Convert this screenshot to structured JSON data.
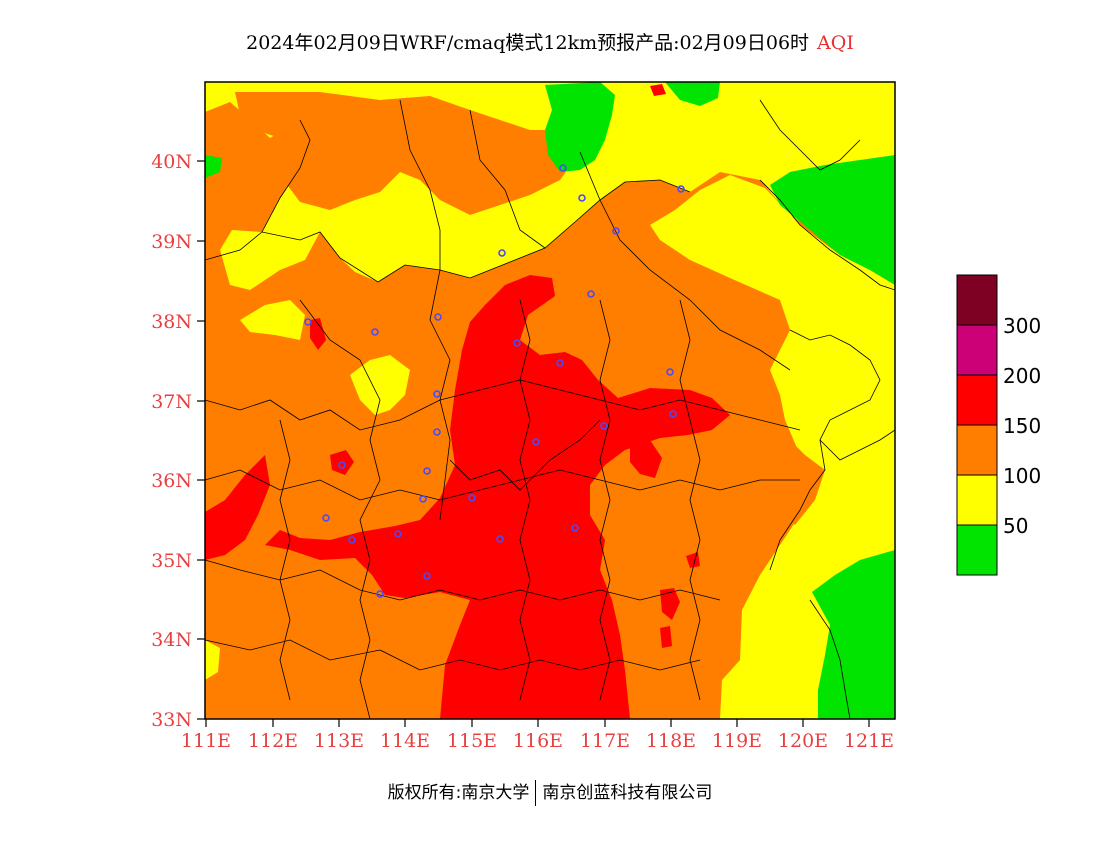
{
  "title": {
    "main": "2024年02月09日WRF/cmaq模式12km预报产品:02月09日06时",
    "variable": "AQI"
  },
  "map": {
    "lat_labels": [
      "40N",
      "39N",
      "38N",
      "37N",
      "36N",
      "35N",
      "34N",
      "33N"
    ],
    "lon_labels": [
      "111E",
      "112E",
      "113E",
      "114E",
      "115E",
      "116E",
      "117E",
      "118E",
      "119E",
      "120E",
      "121E"
    ],
    "colors": {
      "green": "#00e400",
      "yellow": "#ffff00",
      "orange": "#ff7e00",
      "red": "#ff0000",
      "magenta": "#cc0077",
      "maroon": "#7e0023",
      "station": "#4a4aff"
    }
  },
  "legend": {
    "labels": [
      "300",
      "200",
      "150",
      "100",
      "50"
    ]
  },
  "footer": {
    "copyright": "版权所有:南京大学",
    "company": "南京创蓝科技有限公司"
  }
}
